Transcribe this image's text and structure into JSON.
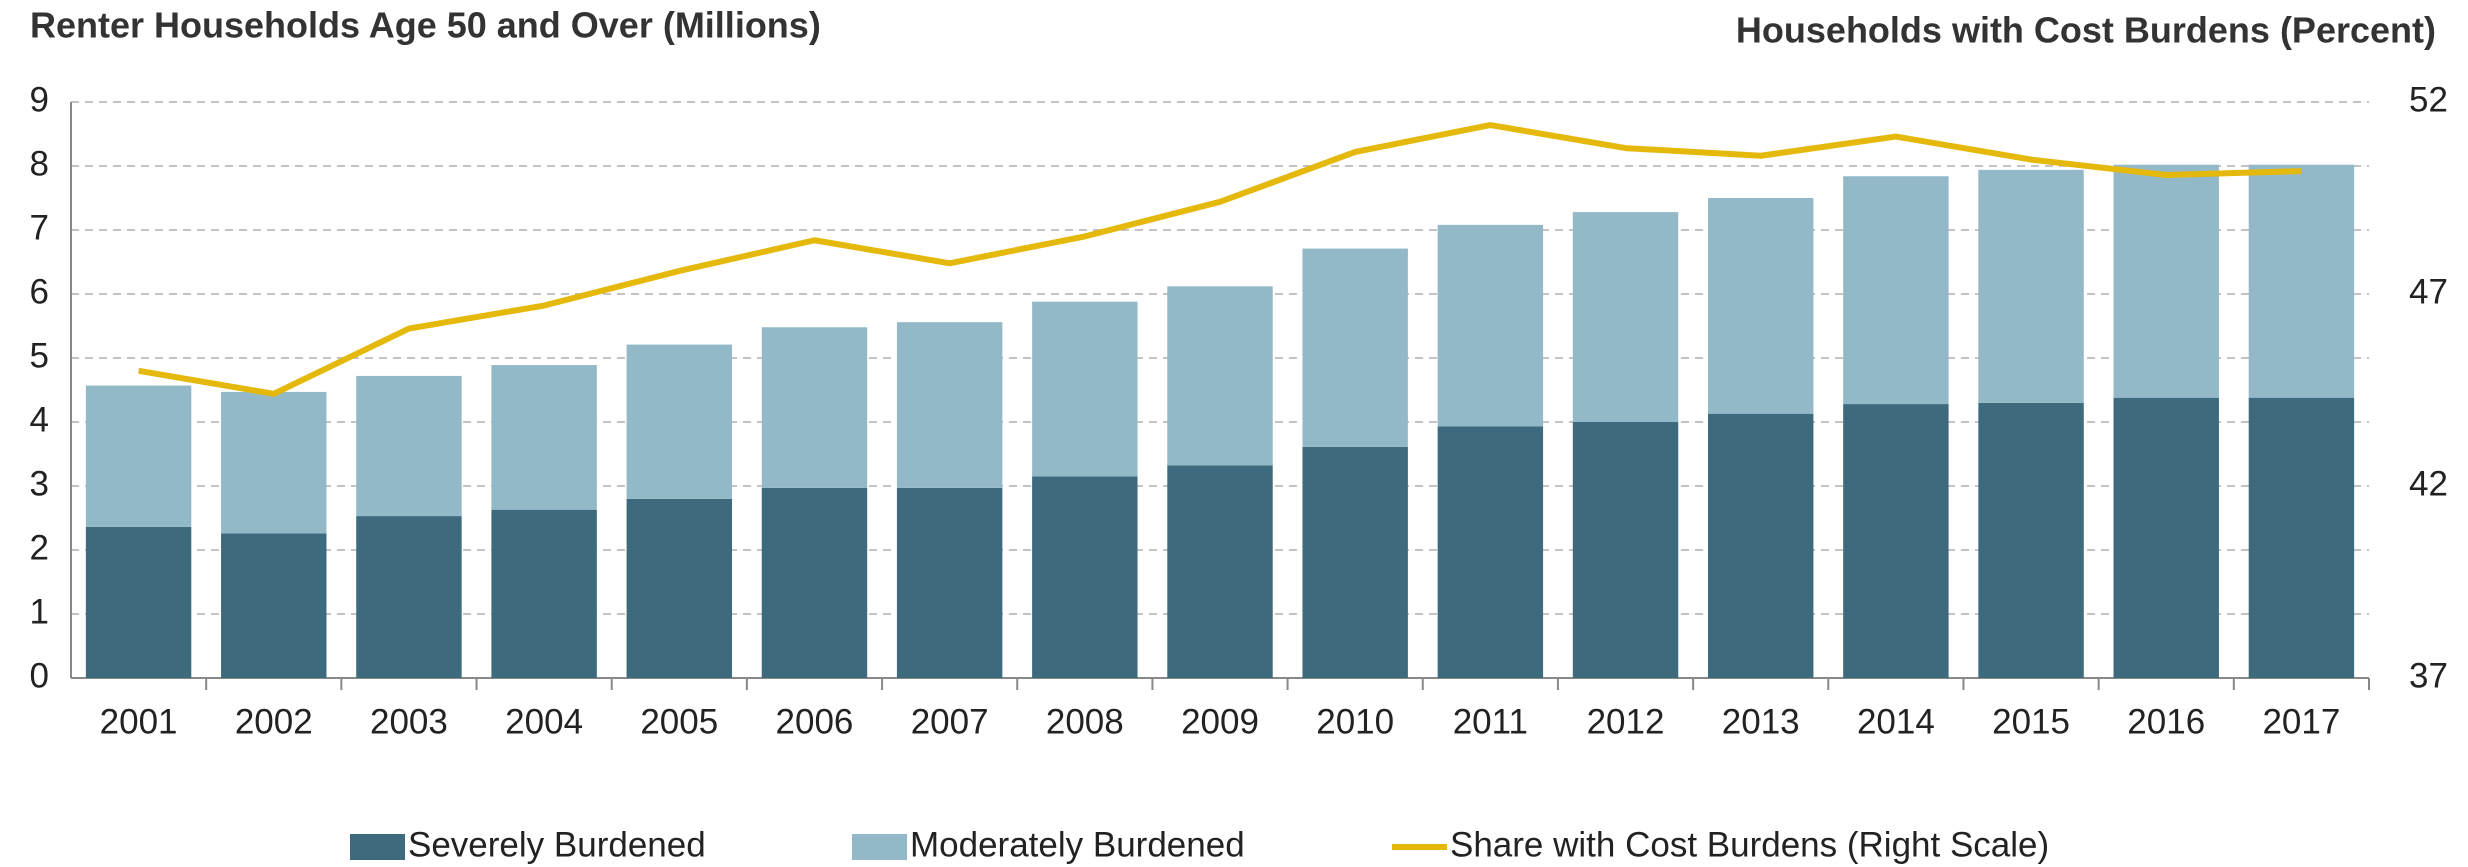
{
  "chart_data": {
    "type": "bar",
    "title": "Renter Households Age 50 and Over (Millions)",
    "y2_title": "Households with Cost Burdens (Percent)",
    "categories": [
      "2001",
      "2002",
      "2003",
      "2004",
      "2005",
      "2006",
      "2007",
      "2008",
      "2009",
      "2010",
      "2011",
      "2012",
      "2013",
      "2014",
      "2015",
      "2016",
      "2017"
    ],
    "series": [
      {
        "name": "Severely Burdened",
        "color": "#3d6b7d",
        "stacked": true,
        "values": [
          2.36,
          2.26,
          2.53,
          2.63,
          2.8,
          2.97,
          2.97,
          3.15,
          3.32,
          3.61,
          3.93,
          4.0,
          4.13,
          4.28,
          4.3,
          4.38,
          4.38
        ]
      },
      {
        "name": "Moderately Burdened",
        "color": "#93b9c9",
        "stacked": true,
        "values": [
          2.21,
          2.21,
          2.19,
          2.26,
          2.41,
          2.51,
          2.59,
          2.73,
          2.8,
          3.1,
          3.15,
          3.28,
          3.37,
          3.56,
          3.64,
          3.64,
          3.64
        ]
      },
      {
        "name": "Share with Cost Burdens (Right Scale)",
        "color": "#e5b90b",
        "type": "line",
        "axis": "y2",
        "values": [
          45.0,
          44.4,
          46.1,
          46.7,
          47.6,
          48.4,
          47.8,
          48.5,
          49.4,
          50.7,
          51.4,
          50.8,
          50.6,
          51.1,
          50.5,
          50.1,
          50.2
        ]
      }
    ],
    "ylim": [
      0,
      9
    ],
    "yticks": [
      0,
      1,
      2,
      3,
      4,
      5,
      6,
      7,
      8,
      9
    ],
    "y2lim": [
      37,
      52
    ],
    "y2ticks": [
      37,
      42,
      47,
      52
    ],
    "grid": true,
    "legend": "bottom"
  }
}
